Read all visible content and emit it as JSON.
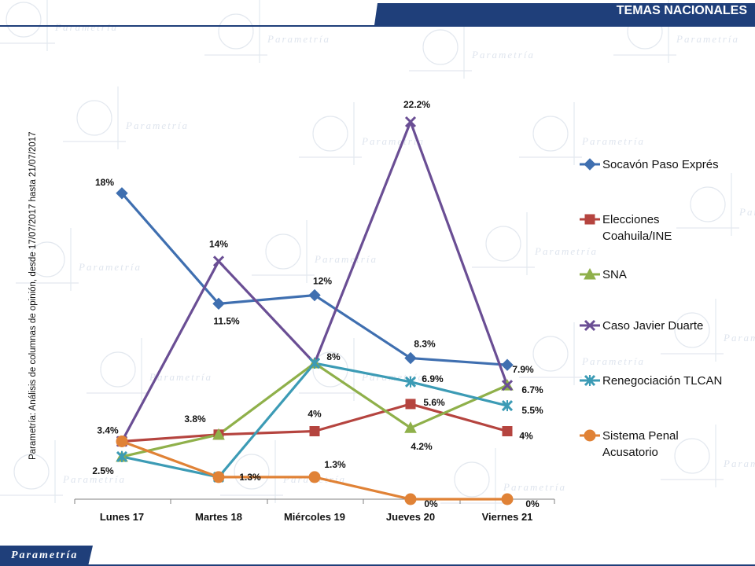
{
  "header": {
    "title": "TEMAS NACIONALES"
  },
  "side_note": "Parametría: Análisis de columnas de opinión, desde 17/07/2017 hasta 21/07/2017",
  "footer": {
    "logo": "Parametría"
  },
  "watermark": {
    "text": "Parametría"
  },
  "colors": {
    "header_bar": "#1f3f7a",
    "footer_bar": "#1f3f7a",
    "axis": "#808080"
  },
  "chart_data": {
    "type": "line",
    "categories": [
      "Lunes 17",
      "Martes 18",
      "Miércoles 19",
      "Jueves 20",
      "Viernes 21"
    ],
    "ylim": [
      0,
      25
    ],
    "grid": false,
    "legend_position": "right",
    "series": [
      {
        "name": "Socavón Paso Exprés",
        "color": "#3f6fb0",
        "marker": "diamond",
        "values": [
          18,
          11.5,
          12,
          8.3,
          7.9
        ],
        "labels": [
          "18%",
          "11.5%",
          "12%",
          "8.3%",
          "7.9%"
        ]
      },
      {
        "name": "Elecciones Coahuila/INE",
        "color": "#b5443f",
        "marker": "square",
        "values": [
          3.4,
          3.8,
          4,
          5.6,
          4
        ],
        "labels": [
          "3.4%",
          "3.8%",
          "4%",
          "5.6%",
          "4%"
        ]
      },
      {
        "name": "SNA",
        "color": "#8fb04a",
        "marker": "triangle",
        "values": [
          2.5,
          3.8,
          8,
          4.2,
          6.7
        ],
        "labels": [
          "",
          "",
          "",
          "4.2%",
          ""
        ]
      },
      {
        "name": "Caso Javier Duarte",
        "color": "#6a4e94",
        "marker": "x",
        "values": [
          3.4,
          14,
          8,
          22.2,
          6.7
        ],
        "labels": [
          "",
          "14%",
          "8%",
          "22.2%",
          "6.7%"
        ]
      },
      {
        "name": "Renegociación TLCAN",
        "color": "#3c9bb5",
        "marker": "star",
        "values": [
          2.5,
          1.3,
          8,
          6.9,
          5.5
        ],
        "labels": [
          "2.5%",
          "",
          "",
          "6.9%",
          "5.5%"
        ]
      },
      {
        "name": "Sistema Penal Acusatorio",
        "color": "#e08236",
        "marker": "circle",
        "values": [
          3.4,
          1.3,
          1.3,
          0,
          0
        ],
        "labels": [
          "",
          "1.3%",
          "1.3%",
          "0%",
          "0%"
        ]
      }
    ]
  }
}
